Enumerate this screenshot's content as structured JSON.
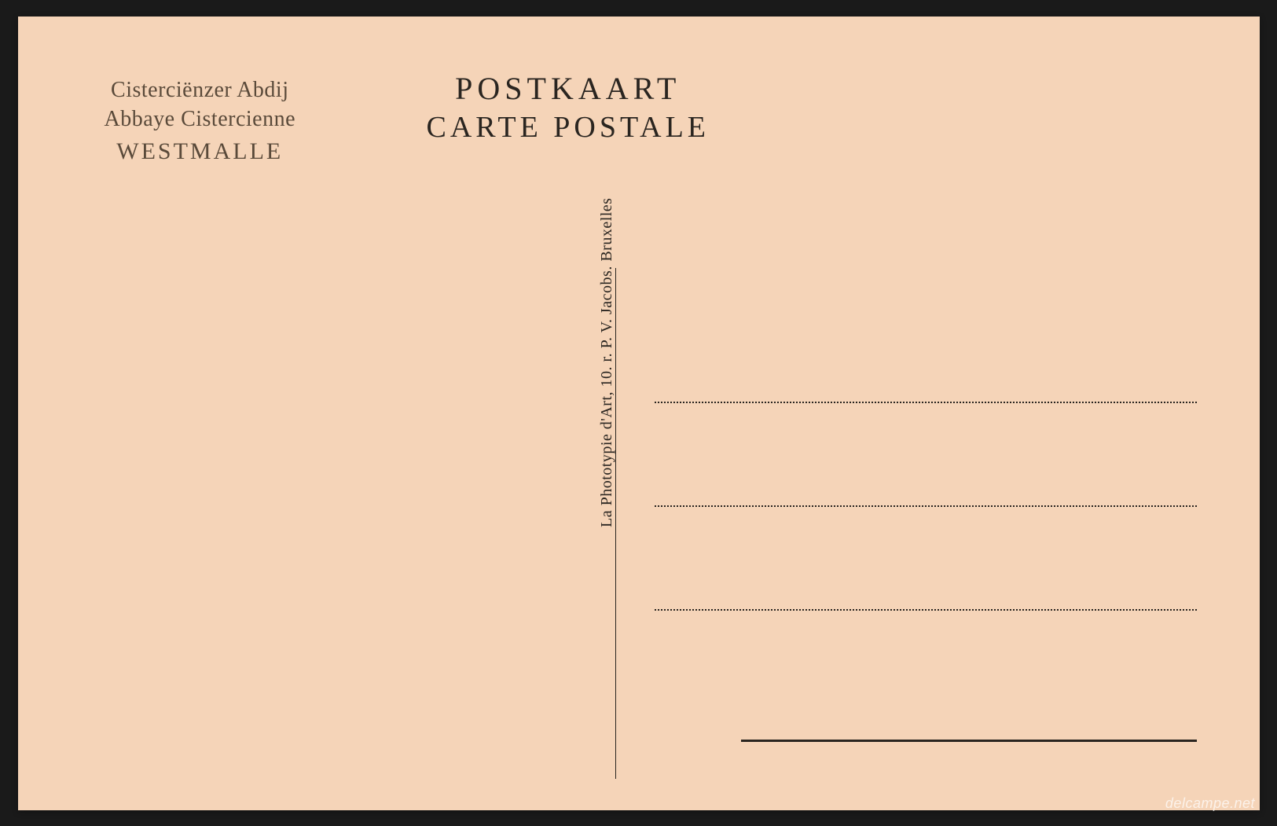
{
  "postcard": {
    "background_color": "#f5d4b8",
    "text_color_light": "#5a4a3a",
    "text_color_dark": "#2a2520",
    "sender": {
      "line1": "Cisterciënzer Abdij",
      "line2": "Abbaye Cistercienne",
      "line3": "WESTMALLE"
    },
    "title": {
      "line1": "POSTKAART",
      "line2": "CARTE POSTALE"
    },
    "printer": "La Phototypie d'Art, 10. r. P. V. Jacobs. Bruxelles",
    "address_line_count": 3
  },
  "watermark": "delcampe.net"
}
